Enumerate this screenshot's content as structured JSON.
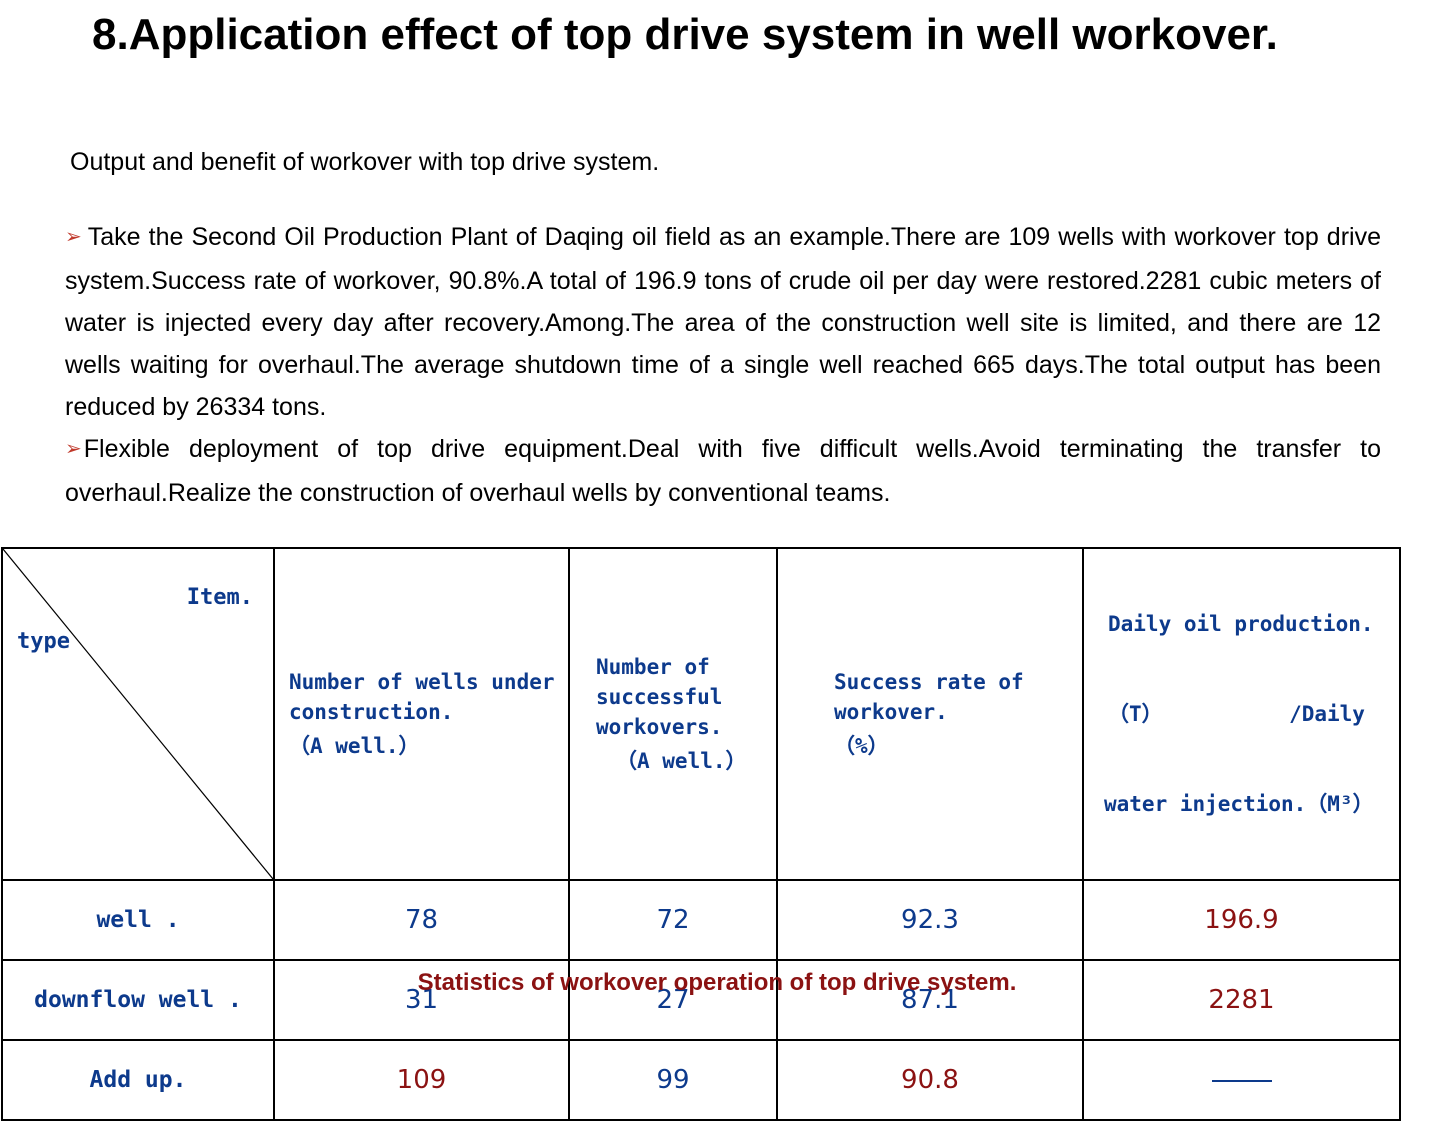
{
  "title": "8.Application effect of top drive system in well workover.",
  "subtitle": "Output and benefit of workover with top drive system.",
  "paragraphs": [
    "Take the Second Oil Production Plant of Daqing oil field as an example.There are 109 wells with workover top drive system.Success rate of workover, 90.8%.A total of 196.9 tons of crude oil per day were restored.2281 cubic meters of water is injected every day after recovery.Among.The area of the construction well site is limited, and there are 12 wells waiting for overhaul.The average shutdown time of a single well reached 665 days.The total output has been reduced by 26334 tons.",
    "Flexible deployment of top drive equipment.Deal with five difficult wells.Avoid terminating the transfer to overhaul.Realize the construction of overhaul wells by conventional teams."
  ],
  "bullet_icon": "arrow-bullet-icon",
  "colors": {
    "header_blue": "#0d3a8c",
    "highlight_red": "#8b1212",
    "bullet": "#c0392b"
  },
  "table": {
    "corner": {
      "item": "Item.",
      "type": "type"
    },
    "headers": {
      "col1": [
        "Number of wells under",
        "construction.",
        "（A well.）"
      ],
      "col2": [
        "Number of",
        "successful",
        "workovers.",
        "（A well.）"
      ],
      "col3": [
        "Success rate of",
        "workover.",
        "（%）"
      ],
      "col4": [
        "Daily oil production.",
        "（T）          /Daily",
        "water injection.（M³）"
      ]
    },
    "rows": [
      {
        "label": "well .",
        "wells": "78",
        "successful": "72",
        "rate": "92.3",
        "daily": "196.9"
      },
      {
        "label": "downflow well .",
        "wells": "31",
        "successful": "27",
        "rate": "87.1",
        "daily": "2281"
      },
      {
        "label": "Add up.",
        "wells": "109",
        "successful": "99",
        "rate": "90.8"
      }
    ]
  },
  "caption": "Statistics of workover operation of top drive system."
}
